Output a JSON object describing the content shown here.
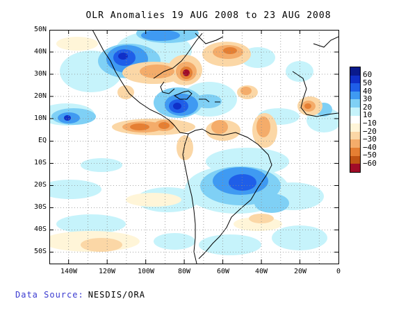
{
  "title": "OLR Anomalies 19 AUG 2008 to 23 AUG 2008",
  "latitude_labels": [
    "50N",
    "40N",
    "30N",
    "20N",
    "10N",
    "EQ",
    "10S",
    "20S",
    "30S",
    "40S",
    "50S"
  ],
  "longitude_labels": [
    "140W",
    "120W",
    "100W",
    "80W",
    "60W",
    "40W",
    "20W",
    "0"
  ],
  "map_extent": {
    "lon_min": -150,
    "lon_max": 0,
    "lat_min": -55,
    "lat_max": 50
  },
  "colorbar": {
    "labels": [
      "60",
      "50",
      "40",
      "30",
      "20",
      "10",
      "−10",
      "−20",
      "−30",
      "−40",
      "−50",
      "−60"
    ],
    "colors": [
      "#0a1a8c",
      "#1030c8",
      "#1f5ee8",
      "#3f9af2",
      "#7fd0f5",
      "#c6f3fb",
      "#ffffff",
      "#fff5d8",
      "#fbd7a6",
      "#f4ac6a",
      "#e57f33",
      "#c05414",
      "#a00c28"
    ]
  },
  "source": {
    "label": "Data Source:",
    "value": "NESDIS/ORA"
  },
  "icons": {
    "map": "world-map-region",
    "colorbar": "color-scale-legend"
  }
}
